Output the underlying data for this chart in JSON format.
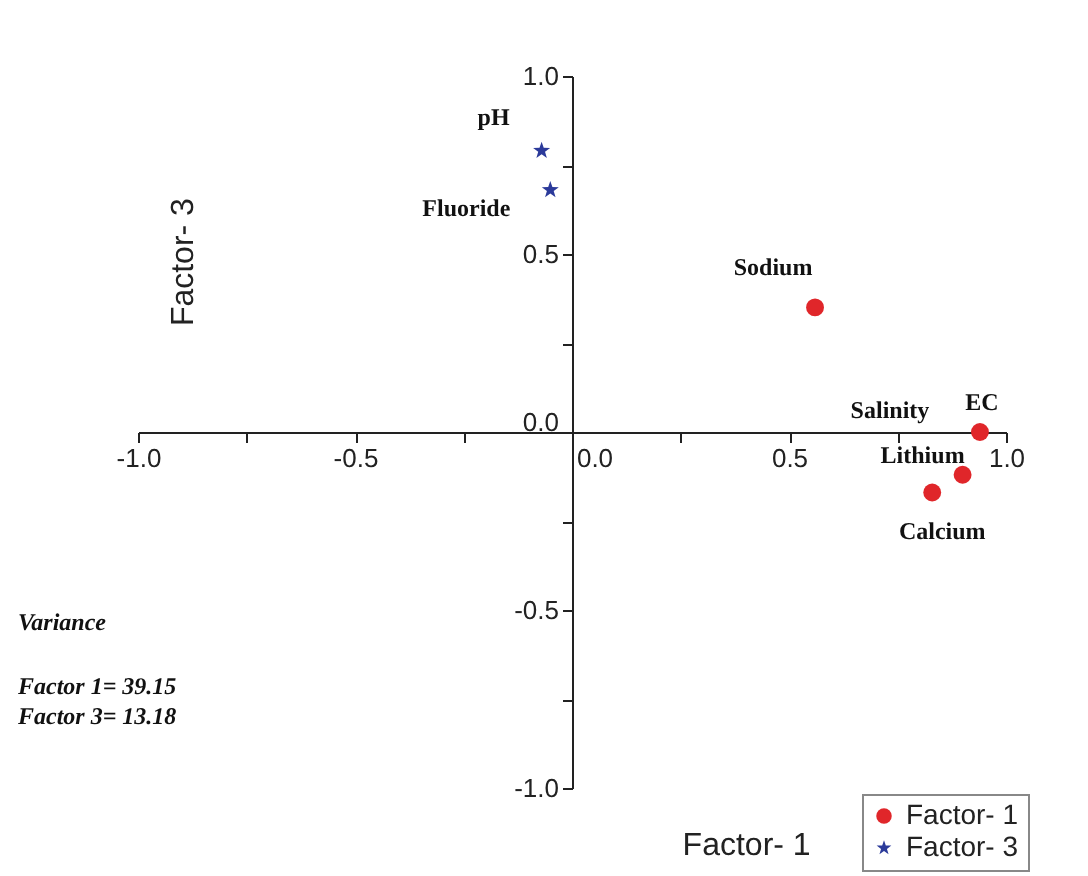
{
  "chart_data": {
    "type": "scatter",
    "xlabel": "Factor- 1",
    "ylabel": "Factor- 3",
    "xlim": [
      -1,
      1
    ],
    "ylim": [
      -1,
      1
    ],
    "xticks": [
      {
        "value": -1,
        "label": "-1.0"
      },
      {
        "value": -0.75,
        "label": null
      },
      {
        "value": -0.5,
        "label": "-0.5"
      },
      {
        "value": -0.25,
        "label": null
      },
      {
        "value": 0,
        "label": "0.0"
      },
      {
        "value": 0.25,
        "label": null
      },
      {
        "value": 0.5,
        "label": "0.5"
      },
      {
        "value": 0.75,
        "label": null
      },
      {
        "value": 1,
        "label": "1.0"
      }
    ],
    "yticks": [
      {
        "value": -1,
        "label": "-1.0"
      },
      {
        "value": -0.75,
        "label": null
      },
      {
        "value": -0.5,
        "label": "-0.5"
      },
      {
        "value": -0.25,
        "label": null
      },
      {
        "value": 0,
        "label": "0.0"
      },
      {
        "value": 0.25,
        "label": null
      },
      {
        "value": 0.5,
        "label": "0.5"
      },
      {
        "value": 0.75,
        "label": null
      },
      {
        "value": 1,
        "label": "1.0"
      }
    ],
    "series": [
      {
        "name": "Factor- 1",
        "color": "#e0262a",
        "marker": "circle",
        "x": [
          0.56,
          0.94,
          0.9,
          0.83
        ],
        "values": [
          0.35,
          0.0,
          -0.12,
          -0.17
        ]
      },
      {
        "name": "Factor- 3",
        "color": "#2b3a9a",
        "marker": "star",
        "x": [
          -0.07,
          -0.05
        ],
        "values": [
          0.79,
          0.68
        ]
      }
    ],
    "annotations": [
      {
        "text": "pH",
        "x": -0.07,
        "y": 0.79
      },
      {
        "text": "Fluoride",
        "x": -0.05,
        "y": 0.68
      },
      {
        "text": "Sodium",
        "x": 0.56,
        "y": 0.35
      },
      {
        "text": "Salinity",
        "x": 0.94,
        "y": 0.0
      },
      {
        "text": "EC",
        "x": 0.94,
        "y": 0.0
      },
      {
        "text": "Lithium",
        "x": 0.9,
        "y": -0.12
      },
      {
        "text": "Calcium",
        "x": 0.83,
        "y": -0.17
      },
      "Variance",
      "Factor 1= 39.15",
      "Factor 3= 13.18"
    ],
    "legend": "bottom right",
    "grid": false
  }
}
